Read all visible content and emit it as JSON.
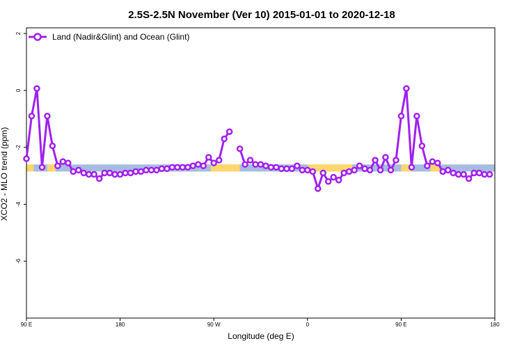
{
  "chart_data": {
    "type": "line",
    "title": "2.5S-2.5N November (Ver 10)   2015-01-01 to 2020-12-18",
    "xlabel": "Longitude (deg E)",
    "ylabel": "XCO2 - MLO trend (ppm)",
    "xlim": [
      90,
      450
    ],
    "ylim": [
      -8,
      2.2
    ],
    "x_ticks": [
      {
        "value": 90,
        "label": "90 E"
      },
      {
        "value": 180,
        "label": "180"
      },
      {
        "value": 270,
        "label": "90 W"
      },
      {
        "value": 360,
        "label": "0"
      },
      {
        "value": 450,
        "label": "90 E"
      },
      {
        "value": 540,
        "label": "180"
      }
    ],
    "y_ticks": [
      {
        "value": 2,
        "label": "2"
      },
      {
        "value": 0,
        "label": "0"
      },
      {
        "value": -2,
        "label": "-2"
      },
      {
        "value": -4,
        "label": "-4"
      },
      {
        "value": -6,
        "label": "-6"
      }
    ],
    "legend": {
      "position": "top-left",
      "entries": [
        "Land (Nadir&Glint) and Ocean (Glint)"
      ]
    },
    "series": [
      {
        "name": "Land (Nadir&Glint) and Ocean (Glint)",
        "color": "#a020f0",
        "points": [
          [
            90,
            -2.4
          ],
          [
            95,
            -0.9
          ],
          [
            100,
            0.07
          ],
          [
            105,
            -2.7
          ],
          [
            110,
            -0.9
          ],
          [
            115,
            -1.95
          ],
          [
            120,
            -2.65
          ],
          [
            125,
            -2.5
          ],
          [
            130,
            -2.55
          ],
          [
            135,
            -2.85
          ],
          [
            140,
            -2.8
          ],
          [
            145,
            -2.9
          ],
          [
            150,
            -2.95
          ],
          [
            155,
            -2.95
          ],
          [
            160,
            -3.1
          ],
          [
            165,
            -2.9
          ],
          [
            170,
            -2.9
          ],
          [
            175,
            -2.95
          ],
          [
            180,
            -2.95
          ],
          [
            185,
            -2.9
          ],
          [
            190,
            -2.9
          ],
          [
            195,
            -2.85
          ],
          [
            200,
            -2.85
          ],
          [
            205,
            -2.8
          ],
          [
            210,
            -2.8
          ],
          [
            215,
            -2.8
          ],
          [
            220,
            -2.75
          ],
          [
            225,
            -2.75
          ],
          [
            230,
            -2.7
          ],
          [
            235,
            -2.7
          ],
          [
            240,
            -2.7
          ],
          [
            245,
            -2.7
          ],
          [
            250,
            -2.65
          ],
          [
            255,
            -2.6
          ],
          [
            260,
            -2.65
          ],
          [
            265,
            -2.35
          ],
          [
            270,
            -2.55
          ],
          [
            275,
            -2.45
          ],
          [
            280,
            -1.7
          ],
          [
            285,
            -1.45
          ],
          null,
          [
            295,
            -2.05
          ],
          [
            300,
            -2.6
          ],
          [
            305,
            -2.45
          ],
          [
            310,
            -2.6
          ],
          [
            315,
            -2.6
          ],
          [
            320,
            -2.65
          ],
          [
            325,
            -2.7
          ],
          [
            330,
            -2.7
          ],
          [
            335,
            -2.75
          ],
          [
            340,
            -2.75
          ],
          [
            345,
            -2.75
          ],
          [
            350,
            -2.65
          ],
          [
            355,
            -2.8
          ],
          [
            360,
            -2.8
          ],
          [
            365,
            -2.85
          ],
          [
            370,
            -3.45
          ],
          [
            375,
            -2.9
          ],
          [
            380,
            -3.2
          ],
          [
            385,
            -3.05
          ],
          [
            390,
            -3.15
          ],
          [
            395,
            -2.9
          ],
          [
            400,
            -2.85
          ],
          [
            405,
            -2.8
          ],
          [
            410,
            -2.65
          ],
          [
            415,
            -2.75
          ],
          [
            420,
            -2.8
          ],
          [
            425,
            -2.45
          ],
          [
            430,
            -2.8
          ],
          [
            435,
            -2.35
          ],
          [
            440,
            -2.8
          ],
          [
            445,
            -2.45
          ],
          [
            450,
            -0.9
          ],
          [
            455,
            0.07
          ],
          [
            460,
            -2.7
          ],
          [
            465,
            -0.9
          ],
          [
            470,
            -1.95
          ],
          [
            475,
            -2.65
          ],
          [
            480,
            -2.5
          ],
          [
            485,
            -2.55
          ],
          [
            490,
            -2.85
          ],
          [
            495,
            -2.8
          ],
          [
            500,
            -2.9
          ],
          [
            505,
            -2.95
          ],
          [
            510,
            -2.95
          ],
          [
            515,
            -3.1
          ],
          [
            520,
            -2.9
          ],
          [
            525,
            -2.9
          ],
          [
            530,
            -2.95
          ],
          [
            535,
            -2.95
          ]
        ]
      }
    ],
    "band": {
      "y_range": [
        -2.85,
        -2.6
      ],
      "base_color": "#a7bce0",
      "highlight_color": "#ffd76e",
      "highlight_x_ranges": [
        [
          90,
          97
        ],
        [
          110,
          118
        ],
        [
          267,
          295
        ],
        [
          360,
          403
        ],
        [
          450,
          460
        ],
        [
          478,
          487
        ]
      ]
    }
  }
}
